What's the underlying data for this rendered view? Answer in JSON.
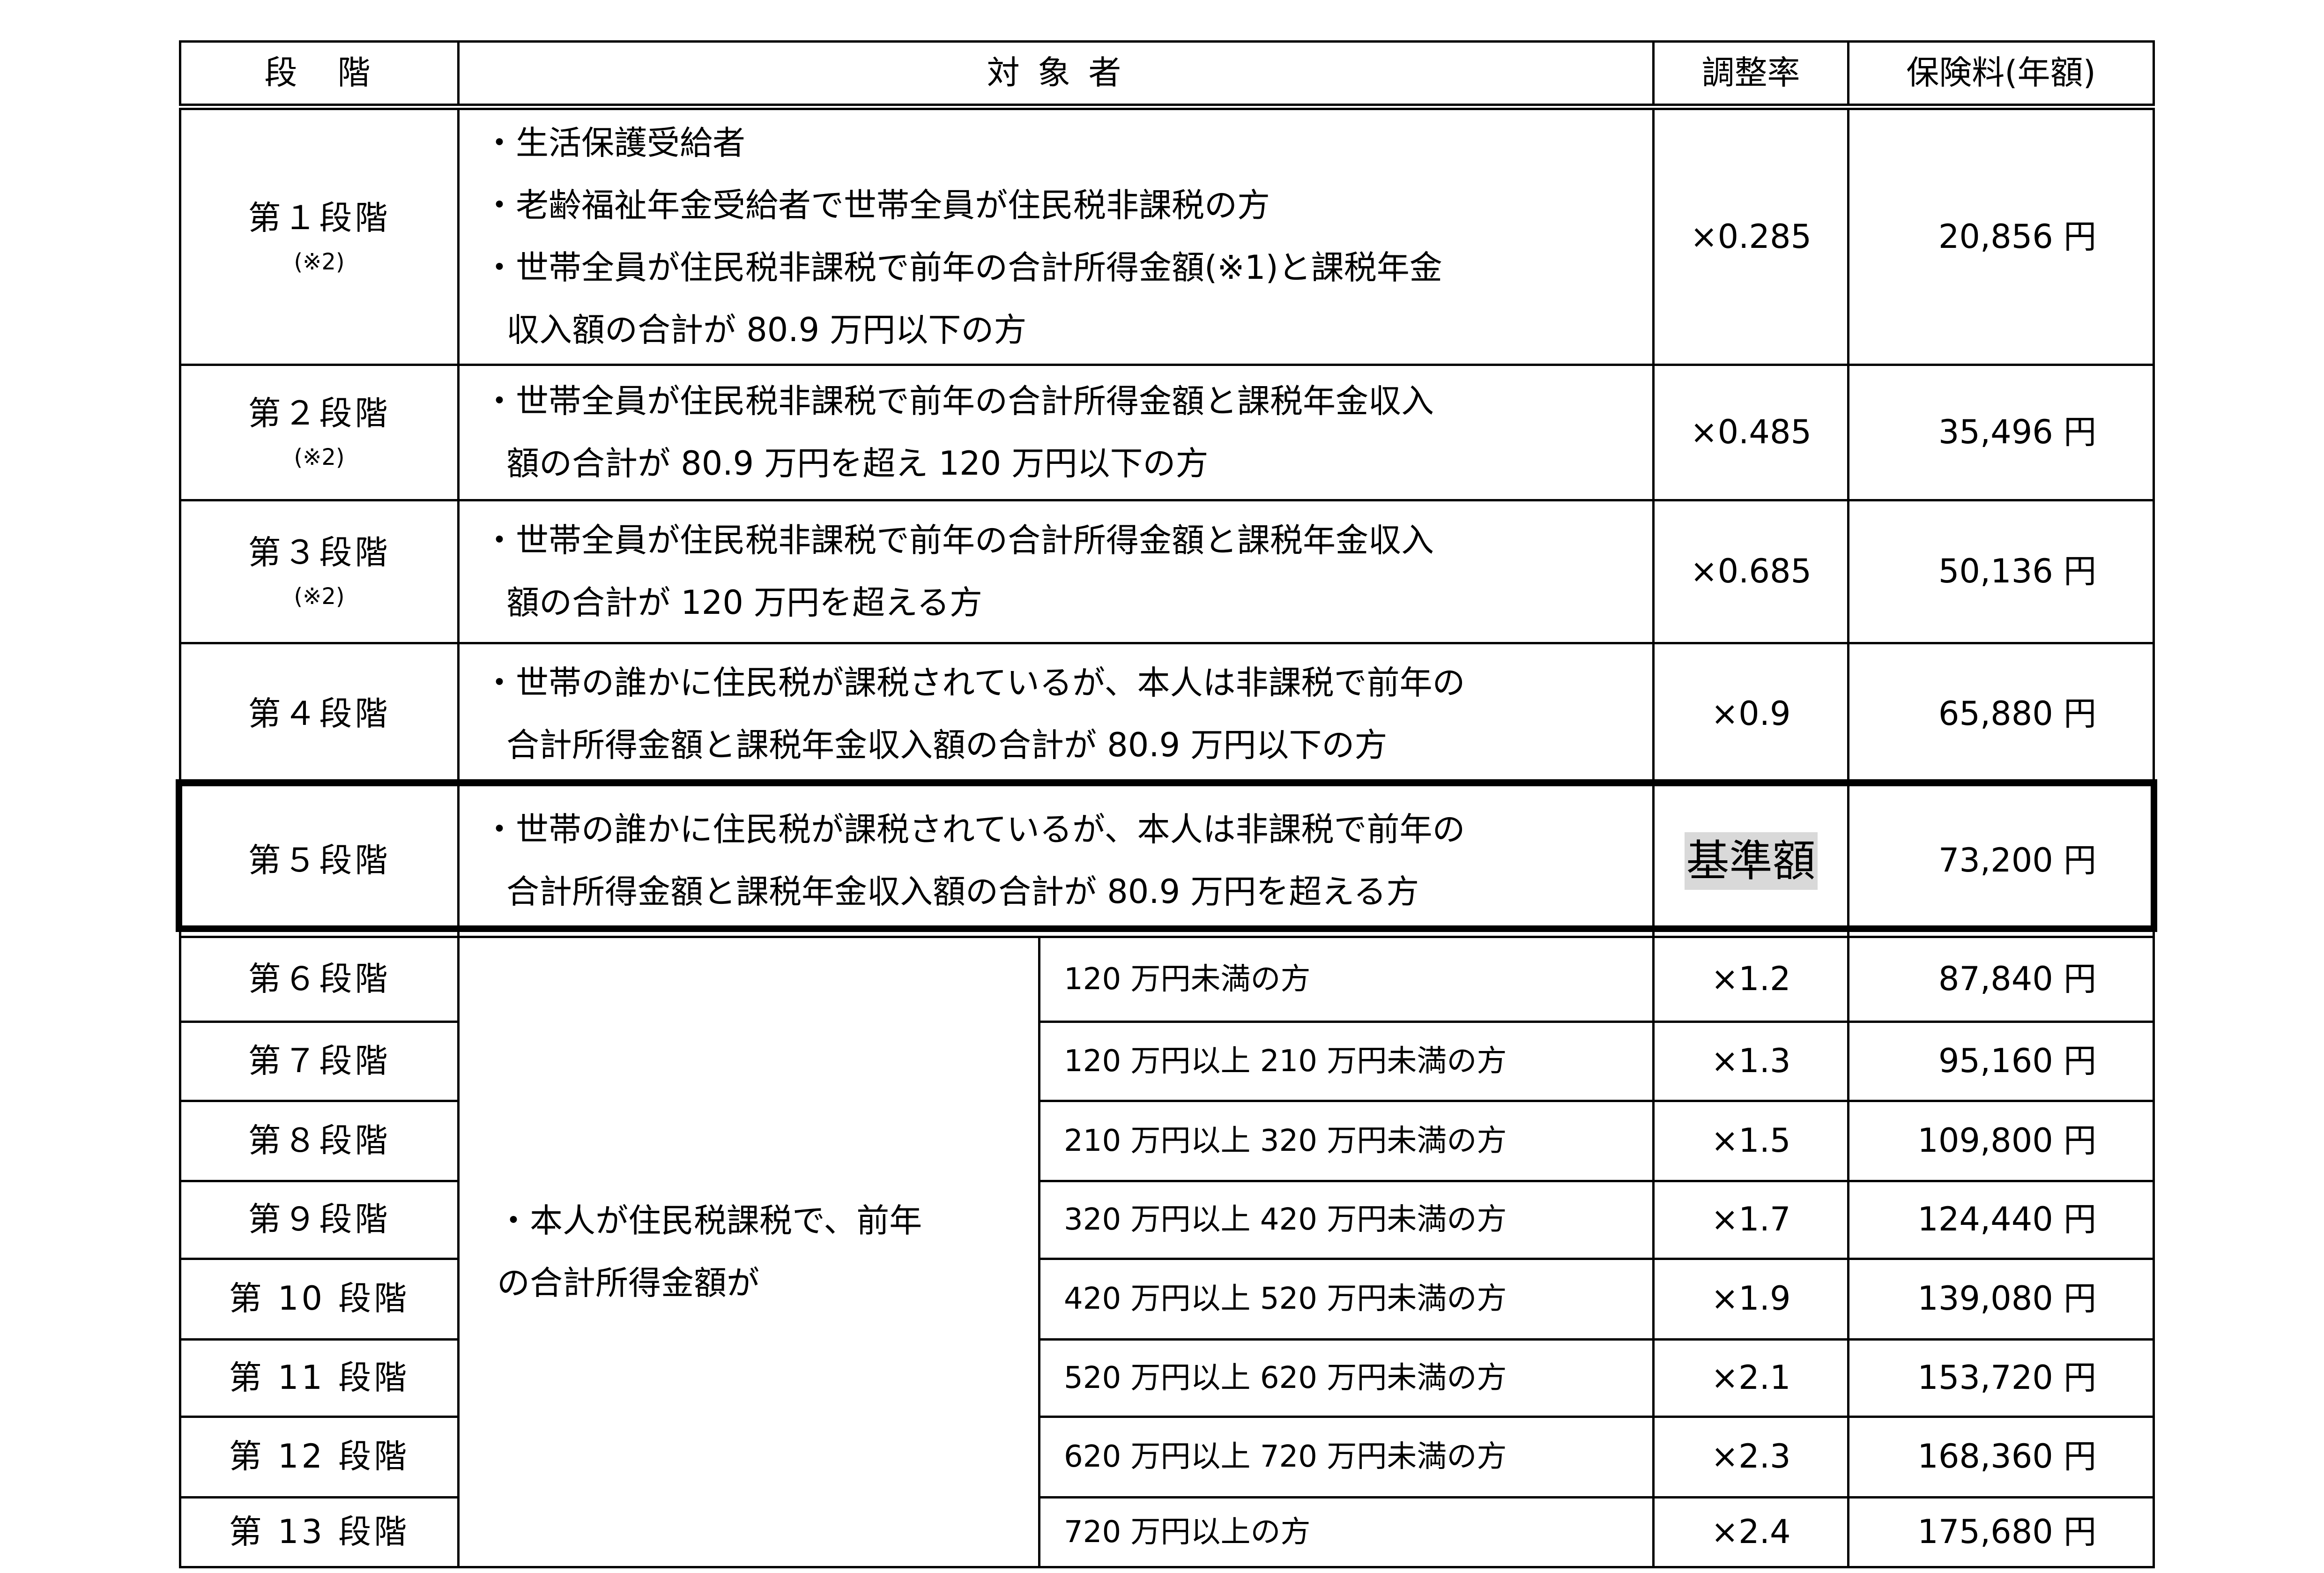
{
  "header": {
    "stage": "段　階",
    "target": "対 象 者",
    "rate": "調整率",
    "premium": "保険料(年額)"
  },
  "rows_upper": [
    {
      "stage": "第１段階",
      "note": "(※2)",
      "lines": [
        "・生活保護受給者",
        "・老齢福祉年金受給者で世帯全員が住民税非課税の方",
        "・世帯全員が住民税非課税で前年の合計所得金額(※1)と課税年金",
        "収入額の合計が 80.9 万円以下の方"
      ],
      "rate": "×0.285",
      "premium": "20,856 円"
    },
    {
      "stage": "第２段階",
      "note": "(※2)",
      "lines": [
        "・世帯全員が住民税非課税で前年の合計所得金額と課税年金収入",
        "額の合計が 80.9 万円を超え 120 万円以下の方"
      ],
      "rate": "×0.485",
      "premium": "35,496 円"
    },
    {
      "stage": "第３段階",
      "note": "(※2)",
      "lines": [
        "・世帯全員が住民税非課税で前年の合計所得金額と課税年金収入",
        "額の合計が 120 万円を超える方"
      ],
      "rate": "×0.685",
      "premium": "50,136 円"
    },
    {
      "stage": "第４段階",
      "lines": [
        "・世帯の誰かに住民税が課税されているが、本人は非課税で前年の",
        "合計所得金額と課税年金収入額の合計が 80.9 万円以下の方"
      ],
      "rate": "×0.9",
      "premium": "65,880 円"
    },
    {
      "stage": "第５段階",
      "lines": [
        "・世帯の誰かに住民税が課税されているが、本人は非課税で前年の",
        "合計所得金額と課税年金収入額の合計が 80.9 万円を超える方"
      ],
      "rate": "基準額",
      "premium": "73,200 円"
    }
  ],
  "merged_description": [
    "・本人が住民税課税で、前年",
    "の合計所得金額が"
  ],
  "rows_lower": [
    {
      "stage": "第６段階",
      "range": "120 万円未満の方",
      "rate": "×1.2",
      "premium": "87,840 円"
    },
    {
      "stage": "第７段階",
      "range": "120 万円以上 210 万円未満の方",
      "rate": "×1.3",
      "premium": "95,160 円"
    },
    {
      "stage": "第８段階",
      "range": "210 万円以上 320 万円未満の方",
      "rate": "×1.5",
      "premium": "109,800 円"
    },
    {
      "stage": "第９段階",
      "range": "320 万円以上 420 万円未満の方",
      "rate": "×1.7",
      "premium": "124,440 円"
    },
    {
      "stage": "第 10 段階",
      "range": "420 万円以上 520 万円未満の方",
      "rate": "×1.9",
      "premium": "139,080 円"
    },
    {
      "stage": "第 11 段階",
      "range": "520 万円以上 620 万円未満の方",
      "rate": "×2.1",
      "premium": "153,720 円"
    },
    {
      "stage": "第 12 段階",
      "range": "620 万円以上 720 万円未満の方",
      "rate": "×2.3",
      "premium": "168,360 円"
    },
    {
      "stage": "第 13 段階",
      "range": "720 万円以上の方",
      "rate": "×2.4",
      "premium": "175,680 円"
    }
  ],
  "colors": {
    "base_highlight": "#d9d9d9",
    "border": "#000000"
  }
}
